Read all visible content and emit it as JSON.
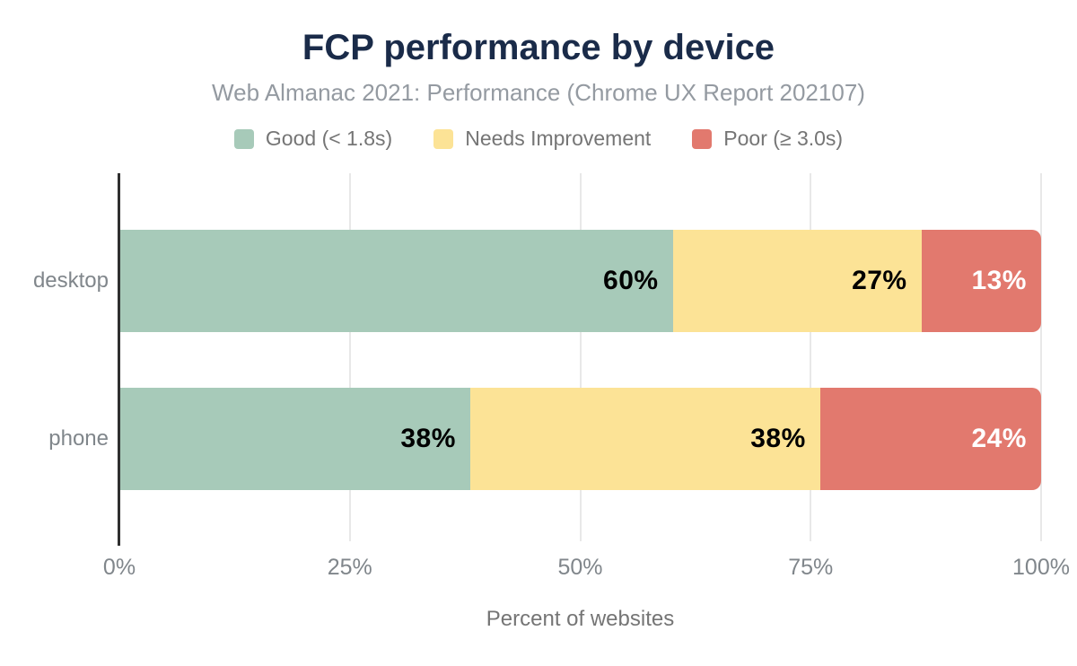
{
  "chart_data": {
    "type": "bar",
    "orientation": "horizontal",
    "stacked": true,
    "title": "FCP performance by device",
    "subtitle": "Web Almanac 2021: Performance (Chrome UX Report 202107)",
    "xlabel": "Percent of websites",
    "categories": [
      "desktop",
      "phone"
    ],
    "series": [
      {
        "name": "Good (< 1.8s)",
        "color": "#a7cab9",
        "label_color": "#000000",
        "values": [
          60,
          38
        ]
      },
      {
        "name": "Needs Improvement",
        "color": "#fce396",
        "label_color": "#000000",
        "values": [
          27,
          38
        ]
      },
      {
        "name": "Poor (≥ 3.0s)",
        "color": "#e2796e",
        "label_color": "#ffffff",
        "values": [
          13,
          24
        ]
      }
    ],
    "x_ticks": [
      {
        "value": 0,
        "label": "0%"
      },
      {
        "value": 25,
        "label": "25%"
      },
      {
        "value": 50,
        "label": "50%"
      },
      {
        "value": 75,
        "label": "75%"
      },
      {
        "value": 100,
        "label": "100%"
      }
    ],
    "xlim": [
      0,
      100
    ],
    "value_suffix": "%",
    "grid": "vertical",
    "legend_position": "top",
    "colors": {
      "title": "#1a2b49",
      "subtitle": "#949aa1",
      "axis_text": "#80868b",
      "legend_text": "#757575",
      "grid": "#e8e8e8",
      "axis_line": "#2f2f2f",
      "background": "#ffffff"
    }
  }
}
